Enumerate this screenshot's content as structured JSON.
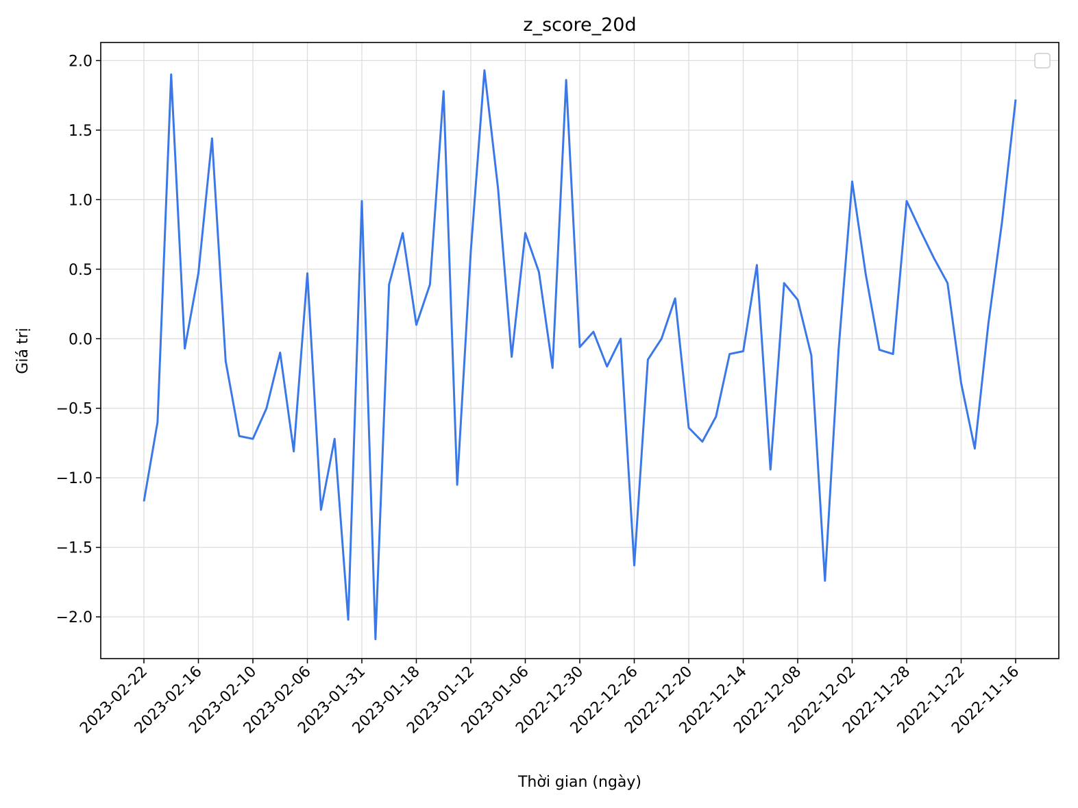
{
  "chart_data": {
    "type": "line",
    "title": "z_score_20d",
    "xlabel": "Thời gian (ngày)",
    "ylabel": "Giá trị",
    "ylim": [
      -2.3,
      2.13
    ],
    "y_ticks": [
      2.0,
      1.5,
      1.0,
      0.5,
      0.0,
      -0.5,
      -1.0,
      -1.5,
      -2.0
    ],
    "y_tick_labels": [
      "2.0",
      "1.5",
      "1.0",
      "0.5",
      "0.0",
      "−0.5",
      "−1.0",
      "−1.5",
      "−2.0"
    ],
    "x_tick_labels": [
      "2023-02-22",
      "2023-02-16",
      "2023-02-10",
      "2023-02-06",
      "2023-01-31",
      "2023-01-18",
      "2023-01-12",
      "2023-01-06",
      "2022-12-30",
      "2022-12-26",
      "2022-12-20",
      "2022-12-14",
      "2022-12-08",
      "2022-12-02",
      "2022-11-28",
      "2022-11-22",
      "2022-11-16"
    ],
    "x_tick_every": 4,
    "grid": true,
    "legend": "top-right",
    "line_color": "#3b78e7",
    "series": [
      {
        "values": [
          -1.17,
          -0.6,
          1.9,
          -0.07,
          0.47,
          1.44,
          -0.16,
          -0.7,
          -0.72,
          -0.5,
          -0.1,
          -0.81,
          0.47,
          -1.23,
          -0.72,
          -2.02,
          0.99,
          -2.16,
          0.39,
          0.76,
          0.1,
          0.39,
          1.78,
          -1.05,
          0.63,
          1.93,
          1.08,
          -0.13,
          0.76,
          0.48,
          -0.21,
          1.86,
          -0.06,
          0.05,
          -0.2,
          0.0,
          -1.63,
          -0.15,
          0.0,
          0.29,
          -0.64,
          -0.74,
          -0.56,
          -0.11,
          -0.09,
          0.53,
          -0.94,
          0.4,
          0.28,
          -0.12,
          -1.74,
          -0.08,
          1.13,
          0.46,
          -0.08,
          -0.11,
          0.99,
          0.78,
          0.58,
          0.4,
          -0.32,
          -0.79,
          0.11,
          0.84,
          1.72
        ]
      }
    ]
  }
}
